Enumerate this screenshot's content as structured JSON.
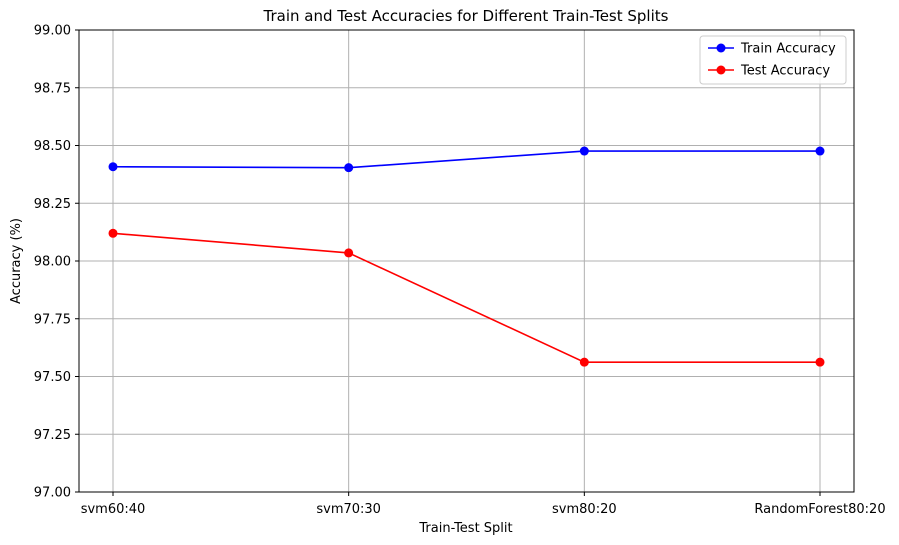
{
  "chart_data": {
    "type": "line",
    "title": "Train and Test Accuracies for Different Train-Test Splits",
    "xlabel": "Train-Test Split",
    "ylabel": "Accuracy (%)",
    "categories": [
      "svm60:40",
      "svm70:30",
      "svm80:20",
      "RandomForest80:20"
    ],
    "ylim": [
      97.0,
      99.0
    ],
    "yticks": [
      "97.00",
      "97.25",
      "97.50",
      "97.75",
      "98.00",
      "98.25",
      "98.50",
      "98.75",
      "99.00"
    ],
    "grid": true,
    "legend_position": "top-right",
    "series": [
      {
        "name": "Train Accuracy",
        "color": "#0000ff",
        "values": [
          98.408,
          98.404,
          98.476,
          98.476
        ]
      },
      {
        "name": "Test Accuracy",
        "color": "#ff0000",
        "values": [
          98.12,
          98.035,
          97.562,
          97.562
        ]
      }
    ]
  }
}
